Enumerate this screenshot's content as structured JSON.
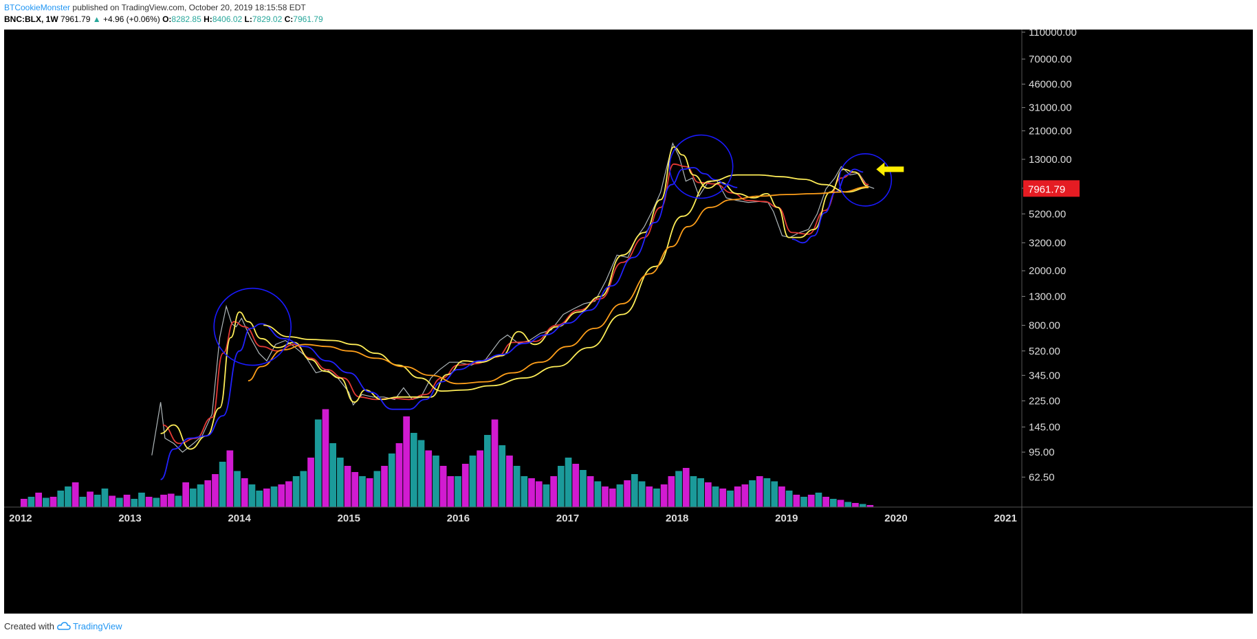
{
  "header": {
    "author": "BTCookieMonster",
    "published": "published on TradingView.com, October 20, 2019 18:15:58 EDT",
    "symbol": "BNC:BLX, 1W",
    "last": "7961.79",
    "change_arrow": "▲",
    "change": "+4.96 (+0.06%)",
    "o_label": "O:",
    "o_value": "8282.85",
    "h_label": "H:",
    "h_value": "8406.02",
    "l_label": "L:",
    "l_value": "7829.02",
    "c_label": "C:",
    "c_value": "7961.79"
  },
  "footer": {
    "created_with": "Created with",
    "brand": "TradingView",
    "brand_icon": "tradingview-cloud-icon"
  },
  "colors": {
    "background": "#000000",
    "up": "#26a69a",
    "down": "#ef5350",
    "volume_up": "#1b9a9a",
    "volume_down": "#d11bd1",
    "price_tag": "#e51c23",
    "ma_red": "#e53935",
    "ma_yellow": "#ffee58",
    "ma_blue": "#2222ff",
    "ma_orange": "#ff9f1a",
    "circle": "#1a1aff",
    "arrow": "#ffee00"
  },
  "chart_data": {
    "type": "line",
    "scale": "log",
    "x_labels": [
      "2012",
      "2013",
      "2014",
      "2015",
      "2016",
      "2017",
      "2018",
      "2019",
      "2020",
      "2021"
    ],
    "y_tick_labels": [
      "110000.00",
      "70000.00",
      "46000.00",
      "31000.00",
      "21000.00",
      "13000.00",
      "8000.00",
      "5200.00",
      "3200.00",
      "2000.00",
      "1300.00",
      "800.00",
      "520.00",
      "345.00",
      "225.00",
      "145.00",
      "95.00",
      "62.50"
    ],
    "y_ticks": [
      110000,
      70000,
      46000,
      31000,
      21000,
      13000,
      8000,
      5200,
      3200,
      2000,
      1300,
      800,
      520,
      345,
      225,
      145,
      95,
      62.5
    ],
    "ylim": [
      40,
      115000
    ],
    "xlim": [
      2011.85,
      2021.15
    ],
    "last_price_label": "7961.79",
    "last_price": 7961.79,
    "price_series": {
      "name": "BNC:BLX",
      "x": [
        2013.2,
        2013.28,
        2013.32,
        2013.4,
        2013.48,
        2013.58,
        2013.66,
        2013.75,
        2013.82,
        2013.88,
        2013.93,
        2013.97,
        2014.02,
        2014.1,
        2014.18,
        2014.25,
        2014.33,
        2014.42,
        2014.5,
        2014.6,
        2014.7,
        2014.8,
        2014.9,
        2015.0,
        2015.04,
        2015.12,
        2015.22,
        2015.32,
        2015.42,
        2015.5,
        2015.58,
        2015.66,
        2015.75,
        2015.83,
        2015.92,
        2016.0,
        2016.12,
        2016.25,
        2016.38,
        2016.45,
        2016.55,
        2016.65,
        2016.75,
        2016.85,
        2016.96,
        2017.05,
        2017.15,
        2017.25,
        2017.35,
        2017.45,
        2017.55,
        2017.62,
        2017.7,
        2017.78,
        2017.85,
        2017.9,
        2017.96,
        2018.02,
        2018.08,
        2018.14,
        2018.2,
        2018.28,
        2018.36,
        2018.45,
        2018.55,
        2018.65,
        2018.75,
        2018.83,
        2018.88,
        2018.96,
        2019.03,
        2019.12,
        2019.2,
        2019.28,
        2019.36,
        2019.44,
        2019.5,
        2019.58,
        2019.66,
        2019.74,
        2019.8
      ],
      "y": [
        90,
        220,
        120,
        110,
        95,
        110,
        125,
        180,
        650,
        1100,
        820,
        780,
        900,
        650,
        500,
        440,
        580,
        620,
        560,
        480,
        360,
        380,
        330,
        260,
        210,
        250,
        240,
        240,
        230,
        280,
        230,
        240,
        330,
        380,
        430,
        430,
        410,
        450,
        620,
        680,
        590,
        620,
        700,
        740,
        960,
        1050,
        1150,
        1200,
        1700,
        2600,
        2500,
        3400,
        4200,
        5600,
        7500,
        11000,
        17000,
        13500,
        9000,
        9500,
        7000,
        8800,
        9200,
        6800,
        6500,
        6300,
        6400,
        6300,
        5400,
        3600,
        3500,
        3800,
        4000,
        5200,
        7900,
        9500,
        11500,
        10000,
        10300,
        8300,
        7961.79
      ]
    },
    "series": [
      {
        "color": "#e53935",
        "x": [
          2013.3,
          2013.45,
          2013.6,
          2013.75,
          2013.85,
          2013.95,
          2014.05,
          2014.2,
          2014.35,
          2014.5,
          2014.65,
          2014.8,
          2014.95,
          2015.1,
          2015.25,
          2015.4,
          2015.55,
          2015.7,
          2015.85,
          2016.0,
          2016.15,
          2016.35,
          2016.5,
          2016.7,
          2016.9,
          2017.1,
          2017.3,
          2017.5,
          2017.7,
          2017.85,
          2017.97,
          2018.08,
          2018.2,
          2018.35,
          2018.5,
          2018.65,
          2018.8,
          2018.92,
          2019.05,
          2019.2,
          2019.35,
          2019.5,
          2019.62,
          2019.75
        ],
        "y": [
          150,
          110,
          120,
          170,
          500,
          850,
          780,
          560,
          520,
          580,
          460,
          380,
          330,
          240,
          230,
          235,
          230,
          250,
          330,
          410,
          420,
          470,
          600,
          610,
          800,
          1030,
          1250,
          2300,
          3500,
          5800,
          12000,
          11500,
          8800,
          8600,
          7400,
          6500,
          6400,
          5800,
          3800,
          3700,
          5500,
          9500,
          10500,
          8500
        ]
      },
      {
        "color": "#ffee58",
        "x": [
          2013.28,
          2013.4,
          2013.55,
          2013.7,
          2013.82,
          2013.92,
          2014.0,
          2014.08,
          2014.2,
          2014.35,
          2014.5,
          2014.65,
          2014.78,
          2014.92,
          2015.05,
          2015.15,
          2015.3,
          2015.45,
          2015.6,
          2015.75,
          2015.9,
          2016.05,
          2016.2,
          2016.4,
          2016.55,
          2016.7,
          2016.9,
          2017.1,
          2017.3,
          2017.5,
          2017.7,
          2017.85,
          2017.97,
          2018.05,
          2018.15,
          2018.28,
          2018.4,
          2018.55,
          2018.7,
          2018.82,
          2018.92,
          2019.02,
          2019.12,
          2019.25,
          2019.4,
          2019.52,
          2019.62,
          2019.75
        ],
        "y": [
          130,
          150,
          100,
          125,
          200,
          650,
          1000,
          850,
          640,
          550,
          600,
          450,
          370,
          330,
          220,
          270,
          230,
          240,
          240,
          240,
          350,
          440,
          430,
          480,
          720,
          580,
          780,
          1000,
          1300,
          2600,
          3800,
          6600,
          16000,
          14000,
          10000,
          8000,
          8800,
          7300,
          6800,
          7300,
          5800,
          3500,
          3500,
          4000,
          7500,
          11000,
          10500,
          8200
        ]
      },
      {
        "color": "#2222ff",
        "x": [
          2013.28,
          2013.4,
          2013.55,
          2013.7,
          2013.85,
          2014.0,
          2014.1,
          2014.2,
          2014.4,
          2014.6,
          2014.8,
          2015.0,
          2015.2,
          2015.4,
          2015.55,
          2015.7,
          2015.85,
          2016.0,
          2016.2,
          2016.4,
          2016.6,
          2016.8,
          2017.0,
          2017.2,
          2017.4,
          2017.6,
          2017.8,
          2017.95,
          2018.05,
          2018.15,
          2018.25,
          2018.35,
          2018.45,
          2018.55
        ],
        "y": [
          60,
          100,
          120,
          125,
          175,
          520,
          760,
          820,
          640,
          560,
          440,
          360,
          260,
          195,
          195,
          230,
          310,
          380,
          440,
          490,
          590,
          680,
          830,
          1030,
          1550,
          2500,
          4500,
          8500,
          11000,
          11300,
          10200,
          9200,
          8500,
          8100
        ]
      },
      {
        "color": "#2222ff",
        "x": [
          2019.05,
          2019.15,
          2019.25,
          2019.35,
          2019.45,
          2019.55,
          2019.62,
          2019.7
        ],
        "y": [
          3400,
          3200,
          3600,
          5300,
          7500,
          10000,
          11000,
          10500
        ]
      },
      {
        "color": "#ffee58",
        "x": [
          2014.22,
          2014.45,
          2014.65,
          2014.85,
          2015.05,
          2015.25,
          2015.45,
          2015.65,
          2015.85,
          2016.05,
          2016.3,
          2016.6,
          2016.9,
          2017.2,
          2017.5,
          2017.8,
          2018.05,
          2018.3,
          2018.55,
          2018.75,
          2018.95,
          2019.15,
          2019.35,
          2019.55,
          2019.75
        ],
        "y": [
          800,
          660,
          630,
          620,
          580,
          500,
          410,
          330,
          265,
          270,
          290,
          330,
          400,
          550,
          960,
          2150,
          5000,
          9000,
          10000,
          10000,
          9700,
          9300,
          8500,
          7500,
          8100
        ]
      },
      {
        "color": "#ff9f1a",
        "x": [
          2014.08,
          2014.2,
          2014.4,
          2014.6,
          2014.8,
          2015.0,
          2015.25,
          2015.5,
          2015.75,
          2016.0,
          2016.25,
          2016.5,
          2016.75,
          2017.0,
          2017.25,
          2017.5,
          2017.75,
          2017.95,
          2018.1,
          2018.3,
          2018.5,
          2018.75,
          2019.0,
          2019.25,
          2019.5,
          2019.75
        ],
        "y": [
          315,
          400,
          530,
          580,
          560,
          520,
          460,
          400,
          345,
          300,
          310,
          360,
          430,
          560,
          760,
          1150,
          1900,
          3000,
          4200,
          5800,
          6600,
          7000,
          7200,
          7300,
          7500,
          8200
        ]
      }
    ],
    "volume": {
      "x_start": 2012.0,
      "x_end": 2019.8,
      "heights": [
        0.08,
        0.1,
        0.14,
        0.09,
        0.1,
        0.16,
        0.2,
        0.24,
        0.1,
        0.15,
        0.12,
        0.18,
        0.11,
        0.09,
        0.12,
        0.08,
        0.14,
        0.1,
        0.09,
        0.12,
        0.13,
        0.11,
        0.24,
        0.18,
        0.22,
        0.26,
        0.32,
        0.44,
        0.55,
        0.35,
        0.28,
        0.22,
        0.16,
        0.18,
        0.2,
        0.22,
        0.25,
        0.3,
        0.35,
        0.48,
        0.85,
        0.95,
        0.62,
        0.48,
        0.4,
        0.34,
        0.3,
        0.28,
        0.35,
        0.4,
        0.52,
        0.62,
        0.88,
        0.72,
        0.65,
        0.55,
        0.5,
        0.4,
        0.3,
        0.3,
        0.42,
        0.5,
        0.55,
        0.7,
        0.85,
        0.6,
        0.5,
        0.4,
        0.3,
        0.28,
        0.25,
        0.22,
        0.3,
        0.4,
        0.48,
        0.42,
        0.36,
        0.3,
        0.25,
        0.2,
        0.18,
        0.22,
        0.26,
        0.32,
        0.25,
        0.2,
        0.18,
        0.22,
        0.3,
        0.35,
        0.38,
        0.3,
        0.28,
        0.24,
        0.2,
        0.18,
        0.16,
        0.2,
        0.22,
        0.26,
        0.3,
        0.28,
        0.25,
        0.2,
        0.16,
        0.12,
        0.1,
        0.12,
        0.14,
        0.1,
        0.08,
        0.07,
        0.05,
        0.04,
        0.03,
        0.02
      ],
      "directions": [
        1,
        0,
        1,
        0,
        1,
        0,
        0,
        1,
        0,
        1,
        0,
        0,
        1,
        0,
        1,
        0,
        0,
        1,
        0,
        1,
        1,
        0,
        1,
        0,
        0,
        1,
        1,
        0,
        1,
        0,
        1,
        0,
        0,
        1,
        0,
        1,
        1,
        0,
        0,
        1,
        0,
        1,
        0,
        0,
        1,
        1,
        0,
        1,
        0,
        1,
        0,
        1,
        1,
        0,
        0,
        1,
        0,
        1,
        1,
        0,
        1,
        0,
        1,
        0,
        1,
        0,
        1,
        0,
        0,
        1,
        1,
        0,
        1,
        0,
        0,
        1,
        0,
        1,
        0,
        1,
        1,
        0,
        1,
        0,
        0,
        1,
        0,
        1,
        1,
        0,
        1,
        0,
        0,
        1,
        0,
        1,
        0,
        1,
        1,
        0,
        1,
        0,
        0,
        1,
        0,
        1,
        0,
        1,
        0,
        1,
        0,
        1,
        0,
        1,
        0,
        1
      ]
    },
    "annotations": [
      {
        "type": "circle",
        "x": 2014.12,
        "y": 780,
        "color": "#1a1aff"
      },
      {
        "type": "circle",
        "x": 2018.22,
        "y": 11500,
        "color": "#1a1aff"
      },
      {
        "type": "circle",
        "x": 2019.72,
        "y": 9200,
        "color": "#1a1aff"
      },
      {
        "type": "arrow",
        "x": 2019.82,
        "y": 11000,
        "direction": "left",
        "color": "#ffee00"
      }
    ]
  }
}
